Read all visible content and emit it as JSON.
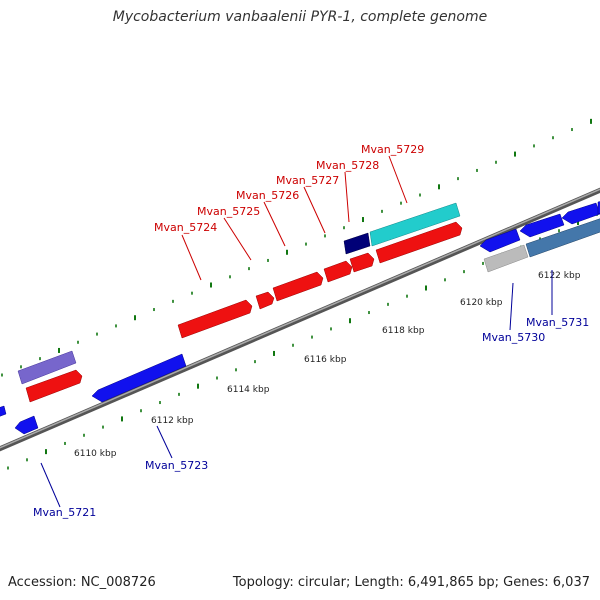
{
  "title": "Mycobacterium vanbaalenii PYR-1, complete genome",
  "footer": {
    "accession": "Accession: NC_008726",
    "summary": "Topology: circular; Length: 6,491,865 bp; Genes: 6,037"
  },
  "ticks": [
    {
      "label": "6110 kbp"
    },
    {
      "label": "6112 kbp"
    },
    {
      "label": "6114 kbp"
    },
    {
      "label": "6116 kbp"
    },
    {
      "label": "6118 kbp"
    },
    {
      "label": "6120 kbp"
    },
    {
      "label": "6122 kbp"
    }
  ],
  "genes_top": [
    {
      "label": "Mvan_5724"
    },
    {
      "label": "Mvan_5725"
    },
    {
      "label": "Mvan_5726"
    },
    {
      "label": "Mvan_5727"
    },
    {
      "label": "Mvan_5728"
    },
    {
      "label": "Mvan_5729"
    }
  ],
  "genes_bottom": [
    {
      "label": "Mvan_5721"
    },
    {
      "label": "Mvan_5723"
    },
    {
      "label": "Mvan_5730"
    },
    {
      "label": "Mvan_5731"
    }
  ],
  "colors": {
    "forward_label": "#cc0000",
    "reverse_label": "#000099",
    "red": "#ee1111",
    "blue": "#1111ee",
    "teal": "#22cccc",
    "navy": "#000077",
    "purple": "#7766cc",
    "grey": "#bbbbbb",
    "steel": "#4477aa",
    "tick": "#117711",
    "backbone": "#777777"
  }
}
